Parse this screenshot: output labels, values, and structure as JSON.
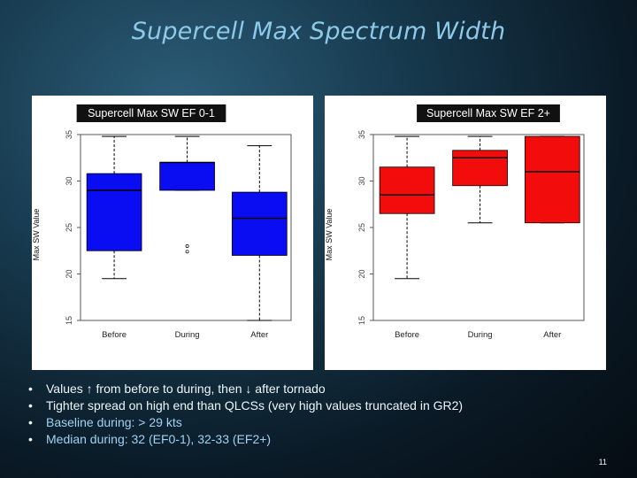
{
  "slide": {
    "title": "Supercell Max Spectrum Width",
    "page_number": "11",
    "bullets": [
      {
        "text": "Values ↑ from before to during, then ↓ after tornado",
        "style": "light"
      },
      {
        "text": "Tighter spread on high end than QLCSs (very high values truncated in GR2)",
        "style": "light"
      },
      {
        "text": "Baseline during: > 29 kts",
        "style": "blue"
      },
      {
        "text": "Median during: 32 (EF0-1), 32-33 (EF2+)",
        "style": "blue"
      }
    ]
  },
  "colors": {
    "ef01": "#0a0cf2",
    "ef2plus": "#f20c0c",
    "title_text": "#8ec9ea"
  },
  "chart_data": [
    {
      "type": "boxplot",
      "title": "Supercell Max SW EF 0-1",
      "ylabel": "Max SW Value",
      "ylim": [
        15,
        35
      ],
      "yticks": [
        "15",
        "20",
        "25",
        "30",
        "35"
      ],
      "categories": [
        "Before",
        "During",
        "After"
      ],
      "color": "#0a0cf2",
      "boxes": [
        {
          "whisker_low": 19.5,
          "q1": 22.5,
          "median": 29.0,
          "q3": 30.8,
          "whisker_high": 34.8,
          "outliers": []
        },
        {
          "whisker_low": 29.0,
          "q1": 29.0,
          "median": 32.0,
          "q3": 32.0,
          "whisker_high": 34.8,
          "outliers": [
            23.0,
            22.4
          ]
        },
        {
          "whisker_low": 15.0,
          "q1": 22.0,
          "median": 26.0,
          "q3": 28.8,
          "whisker_high": 33.8,
          "outliers": []
        }
      ]
    },
    {
      "type": "boxplot",
      "title": "Supercell Max SW EF 2+",
      "ylabel": "Max SW Value",
      "ylim": [
        15,
        35
      ],
      "yticks": [
        "15",
        "20",
        "25",
        "30",
        "35"
      ],
      "categories": [
        "Before",
        "During",
        "After"
      ],
      "color": "#f20c0c",
      "boxes": [
        {
          "whisker_low": 19.5,
          "q1": 26.5,
          "median": 28.5,
          "q3": 31.5,
          "whisker_high": 34.8,
          "outliers": []
        },
        {
          "whisker_low": 25.5,
          "q1": 29.5,
          "median": 32.5,
          "q3": 33.3,
          "whisker_high": 34.8,
          "outliers": []
        },
        {
          "whisker_low": 25.5,
          "q1": 25.5,
          "median": 31.0,
          "q3": 34.8,
          "whisker_high": 34.8,
          "outliers": []
        }
      ]
    }
  ]
}
